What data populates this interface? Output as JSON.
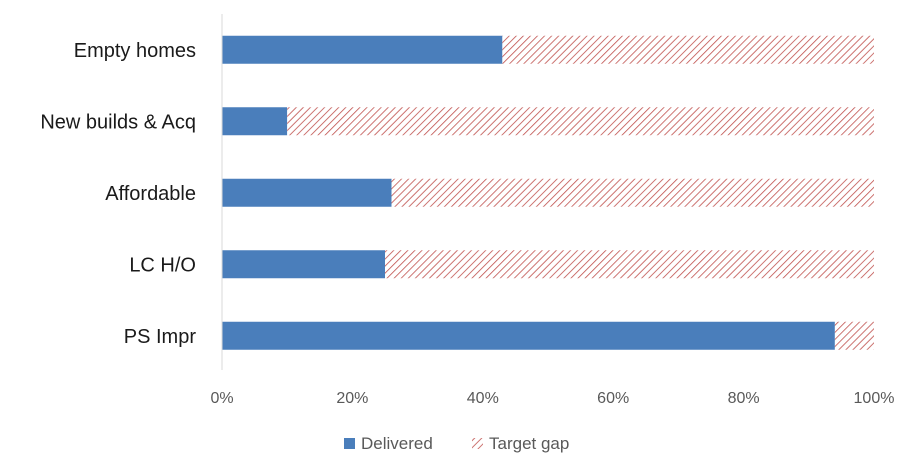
{
  "chart_data": {
    "type": "bar",
    "orientation": "horizontal",
    "stacked": true,
    "categories": [
      "Empty homes",
      "New builds & Acq",
      "Affordable",
      "LC H/O",
      "PS Impr"
    ],
    "series": [
      {
        "name": "Delivered",
        "values": [
          43,
          10,
          26,
          25,
          94
        ],
        "color": "#4a7ebb",
        "pattern": "solid"
      },
      {
        "name": "Target gap",
        "values": [
          57,
          90,
          74,
          75,
          6
        ],
        "color": "#c0504d",
        "pattern": "diagonal-hatch"
      }
    ],
    "x_ticks": [
      "0%",
      "20%",
      "40%",
      "60%",
      "80%",
      "100%"
    ],
    "xlim": [
      0,
      100
    ],
    "grid": false,
    "legend_position": "bottom"
  }
}
